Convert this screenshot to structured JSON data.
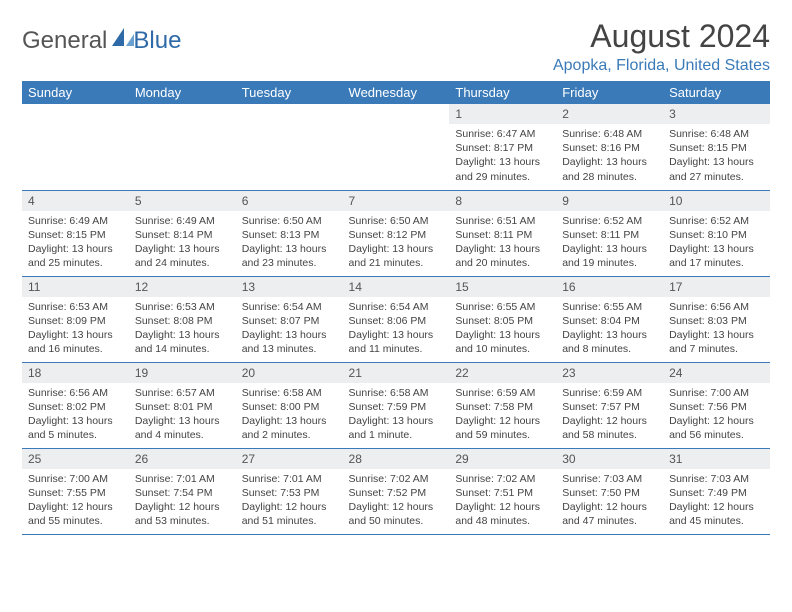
{
  "brand": {
    "part1": "General",
    "part2": "Blue"
  },
  "title": "August 2024",
  "location": "Apopka, Florida, United States",
  "colors": {
    "header_bg": "#3a7ab8",
    "header_fg": "#ffffff",
    "daynum_bg": "#eceeef",
    "border": "#3a7ab8",
    "location_fg": "#3a7ab8",
    "logo_accent": "#2f6aa8"
  },
  "weekdays": [
    "Sunday",
    "Monday",
    "Tuesday",
    "Wednesday",
    "Thursday",
    "Friday",
    "Saturday"
  ],
  "weeks": [
    [
      null,
      null,
      null,
      null,
      {
        "n": "1",
        "sr": "6:47 AM",
        "ss": "8:17 PM",
        "dl": "13 hours and 29 minutes."
      },
      {
        "n": "2",
        "sr": "6:48 AM",
        "ss": "8:16 PM",
        "dl": "13 hours and 28 minutes."
      },
      {
        "n": "3",
        "sr": "6:48 AM",
        "ss": "8:15 PM",
        "dl": "13 hours and 27 minutes."
      }
    ],
    [
      {
        "n": "4",
        "sr": "6:49 AM",
        "ss": "8:15 PM",
        "dl": "13 hours and 25 minutes."
      },
      {
        "n": "5",
        "sr": "6:49 AM",
        "ss": "8:14 PM",
        "dl": "13 hours and 24 minutes."
      },
      {
        "n": "6",
        "sr": "6:50 AM",
        "ss": "8:13 PM",
        "dl": "13 hours and 23 minutes."
      },
      {
        "n": "7",
        "sr": "6:50 AM",
        "ss": "8:12 PM",
        "dl": "13 hours and 21 minutes."
      },
      {
        "n": "8",
        "sr": "6:51 AM",
        "ss": "8:11 PM",
        "dl": "13 hours and 20 minutes."
      },
      {
        "n": "9",
        "sr": "6:52 AM",
        "ss": "8:11 PM",
        "dl": "13 hours and 19 minutes."
      },
      {
        "n": "10",
        "sr": "6:52 AM",
        "ss": "8:10 PM",
        "dl": "13 hours and 17 minutes."
      }
    ],
    [
      {
        "n": "11",
        "sr": "6:53 AM",
        "ss": "8:09 PM",
        "dl": "13 hours and 16 minutes."
      },
      {
        "n": "12",
        "sr": "6:53 AM",
        "ss": "8:08 PM",
        "dl": "13 hours and 14 minutes."
      },
      {
        "n": "13",
        "sr": "6:54 AM",
        "ss": "8:07 PM",
        "dl": "13 hours and 13 minutes."
      },
      {
        "n": "14",
        "sr": "6:54 AM",
        "ss": "8:06 PM",
        "dl": "13 hours and 11 minutes."
      },
      {
        "n": "15",
        "sr": "6:55 AM",
        "ss": "8:05 PM",
        "dl": "13 hours and 10 minutes."
      },
      {
        "n": "16",
        "sr": "6:55 AM",
        "ss": "8:04 PM",
        "dl": "13 hours and 8 minutes."
      },
      {
        "n": "17",
        "sr": "6:56 AM",
        "ss": "8:03 PM",
        "dl": "13 hours and 7 minutes."
      }
    ],
    [
      {
        "n": "18",
        "sr": "6:56 AM",
        "ss": "8:02 PM",
        "dl": "13 hours and 5 minutes."
      },
      {
        "n": "19",
        "sr": "6:57 AM",
        "ss": "8:01 PM",
        "dl": "13 hours and 4 minutes."
      },
      {
        "n": "20",
        "sr": "6:58 AM",
        "ss": "8:00 PM",
        "dl": "13 hours and 2 minutes."
      },
      {
        "n": "21",
        "sr": "6:58 AM",
        "ss": "7:59 PM",
        "dl": "13 hours and 1 minute."
      },
      {
        "n": "22",
        "sr": "6:59 AM",
        "ss": "7:58 PM",
        "dl": "12 hours and 59 minutes."
      },
      {
        "n": "23",
        "sr": "6:59 AM",
        "ss": "7:57 PM",
        "dl": "12 hours and 58 minutes."
      },
      {
        "n": "24",
        "sr": "7:00 AM",
        "ss": "7:56 PM",
        "dl": "12 hours and 56 minutes."
      }
    ],
    [
      {
        "n": "25",
        "sr": "7:00 AM",
        "ss": "7:55 PM",
        "dl": "12 hours and 55 minutes."
      },
      {
        "n": "26",
        "sr": "7:01 AM",
        "ss": "7:54 PM",
        "dl": "12 hours and 53 minutes."
      },
      {
        "n": "27",
        "sr": "7:01 AM",
        "ss": "7:53 PM",
        "dl": "12 hours and 51 minutes."
      },
      {
        "n": "28",
        "sr": "7:02 AM",
        "ss": "7:52 PM",
        "dl": "12 hours and 50 minutes."
      },
      {
        "n": "29",
        "sr": "7:02 AM",
        "ss": "7:51 PM",
        "dl": "12 hours and 48 minutes."
      },
      {
        "n": "30",
        "sr": "7:03 AM",
        "ss": "7:50 PM",
        "dl": "12 hours and 47 minutes."
      },
      {
        "n": "31",
        "sr": "7:03 AM",
        "ss": "7:49 PM",
        "dl": "12 hours and 45 minutes."
      }
    ]
  ]
}
